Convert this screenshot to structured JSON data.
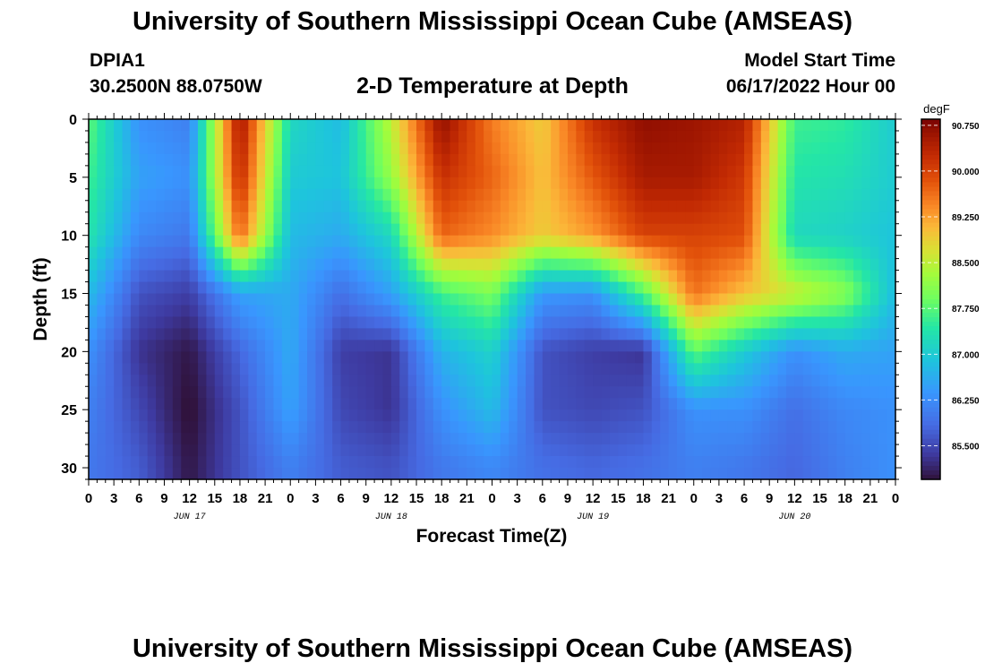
{
  "header": {
    "title": "University of Southern Mississippi Ocean Cube (AMSEAS)",
    "station_id": "DPIA1",
    "station_coords": "30.2500N  88.0750W",
    "plot_title": "2-D Temperature at Depth",
    "start_label": "Model Start Time",
    "start_value": "06/17/2022 Hour 00"
  },
  "footer": {
    "title": "University of Southern Mississippi Ocean Cube (AMSEAS)"
  },
  "chart_data": {
    "type": "heatmap",
    "title": "2-D Temperature at Depth",
    "xlabel": "Forecast Time(Z)",
    "ylabel": "Depth (ft)",
    "colorbar_label": "degF",
    "xlim_hours": [
      0,
      96
    ],
    "ylim": [
      31,
      0
    ],
    "y_ticks": [
      "0",
      "5",
      "10",
      "15",
      "20",
      "25",
      "30"
    ],
    "x_tick_labels": [
      "0",
      "3",
      "6",
      "9",
      "12",
      "15",
      "18",
      "21",
      "0",
      "3",
      "6",
      "9",
      "12",
      "15",
      "18",
      "21",
      "0",
      "3",
      "6",
      "9",
      "12",
      "15",
      "18",
      "21",
      "0",
      "3",
      "6",
      "9",
      "12",
      "15",
      "18",
      "21",
      "0"
    ],
    "day_labels": [
      "JUN 17",
      "JUN 18",
      "JUN 19",
      "JUN 20"
    ],
    "colorbar_ticks": [
      "85.500",
      "86.250",
      "87.000",
      "87.750",
      "88.500",
      "89.250",
      "90.000",
      "90.750"
    ],
    "colorbar_range": [
      84.95,
      90.85
    ],
    "depths_ft": [
      0,
      5,
      10,
      15,
      20,
      25,
      30
    ],
    "hours": [
      0,
      6,
      12,
      18,
      24,
      30,
      36,
      42,
      48,
      54,
      60,
      66,
      72,
      78,
      84,
      90,
      96
    ],
    "values_degF": [
      [
        87.8,
        86.3,
        86.1,
        90.6,
        87.2,
        86.8,
        88.5,
        90.7,
        89.5,
        88.9,
        90.2,
        90.7,
        90.6,
        90.4,
        87.6,
        87.5,
        87.0
      ],
      [
        87.6,
        86.5,
        86.3,
        90.3,
        87.0,
        86.9,
        88.2,
        90.2,
        89.7,
        89.0,
        89.8,
        90.5,
        90.5,
        90.1,
        87.4,
        87.3,
        87.0
      ],
      [
        87.4,
        86.2,
        86.0,
        89.7,
        86.8,
        86.6,
        87.2,
        89.7,
        89.4,
        88.9,
        89.3,
        90.0,
        90.0,
        89.9,
        87.2,
        87.1,
        86.9
      ],
      [
        86.8,
        85.6,
        85.4,
        86.5,
        86.6,
        85.9,
        86.5,
        87.6,
        88.0,
        86.4,
        86.3,
        87.7,
        89.6,
        89.0,
        88.6,
        88.1,
        86.8
      ],
      [
        86.3,
        85.3,
        85.0,
        85.8,
        86.6,
        85.4,
        85.3,
        86.7,
        87.1,
        85.6,
        85.4,
        85.3,
        87.8,
        87.0,
        86.3,
        86.6,
        86.5
      ],
      [
        86.1,
        85.5,
        84.9,
        85.6,
        86.5,
        85.5,
        85.3,
        86.3,
        86.8,
        85.6,
        85.5,
        85.6,
        86.3,
        86.3,
        85.9,
        86.2,
        86.3
      ],
      [
        86.0,
        85.7,
        85.0,
        85.6,
        86.1,
        85.7,
        85.6,
        86.0,
        86.2,
        85.9,
        85.8,
        85.9,
        86.1,
        86.0,
        85.8,
        86.1,
        86.3
      ]
    ]
  }
}
